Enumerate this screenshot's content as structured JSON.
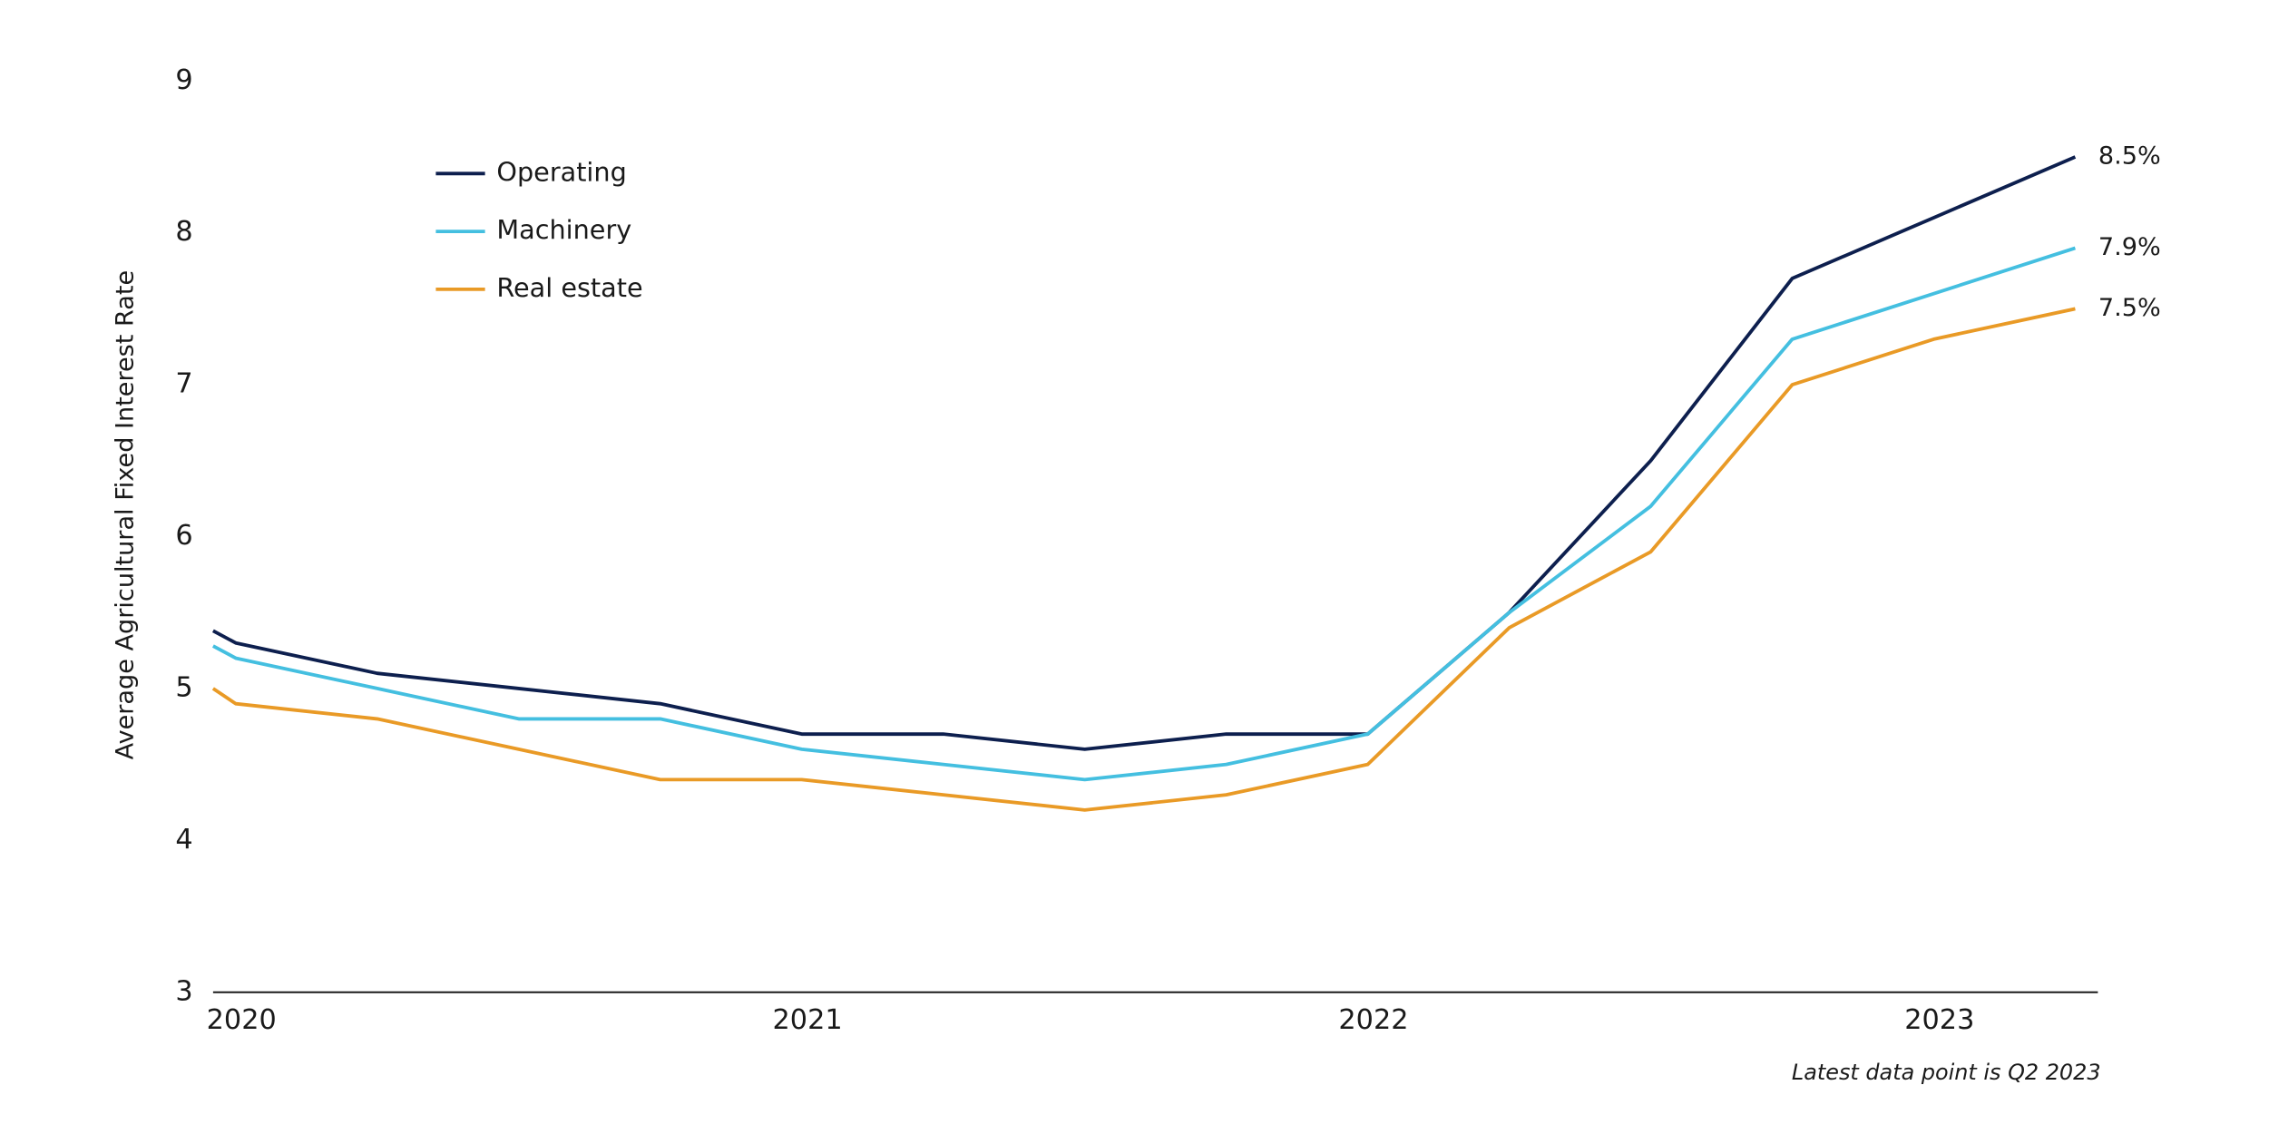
{
  "chart_data": {
    "type": "line",
    "y_label": "Average Agricultural Fixed Interest Rate",
    "annotation": "Latest data point is Q2 2023",
    "x": [
      2019.96,
      2020,
      2020.25,
      2020.5,
      2020.75,
      2021,
      2021.25,
      2021.5,
      2021.75,
      2022,
      2022.25,
      2022.5,
      2022.75,
      2023,
      2023.25
    ],
    "series": [
      {
        "name": "Operating",
        "color": "#0d1f4e",
        "values": [
          5.38,
          5.3,
          5.1,
          5.0,
          4.9,
          4.7,
          4.7,
          4.6,
          4.7,
          4.7,
          5.5,
          6.5,
          7.7,
          8.1,
          8.5
        ],
        "value_labels": [
          null,
          null,
          null,
          null,
          null,
          null,
          null,
          null,
          null,
          null,
          null,
          null,
          null,
          null,
          "8.5%"
        ]
      },
      {
        "name": "Machinery",
        "color": "#44bfe0",
        "values": [
          5.28,
          5.2,
          5.0,
          4.8,
          4.8,
          4.6,
          4.5,
          4.4,
          4.5,
          4.7,
          5.5,
          6.2,
          7.3,
          7.6,
          7.9
        ],
        "value_labels": [
          null,
          null,
          null,
          null,
          null,
          null,
          null,
          null,
          null,
          null,
          null,
          null,
          null,
          null,
          "7.9%"
        ]
      },
      {
        "name": "Real estate",
        "color": "#e99a26",
        "values": [
          5.0,
          4.9,
          4.8,
          4.6,
          4.4,
          4.4,
          4.3,
          4.2,
          4.3,
          4.5,
          5.4,
          5.9,
          7.0,
          7.3,
          7.5
        ],
        "value_labels": [
          null,
          null,
          null,
          null,
          null,
          null,
          null,
          null,
          null,
          null,
          null,
          null,
          null,
          null,
          "7.5%"
        ]
      }
    ],
    "xlim": [
      2019.96,
      2023.29
    ],
    "xticks": [
      2020,
      2021,
      2022,
      2023
    ],
    "ylim": [
      3,
      9
    ],
    "yticks": [
      3,
      4,
      5,
      6,
      7,
      8,
      9
    ],
    "grid": false,
    "legend": "upper-left"
  }
}
